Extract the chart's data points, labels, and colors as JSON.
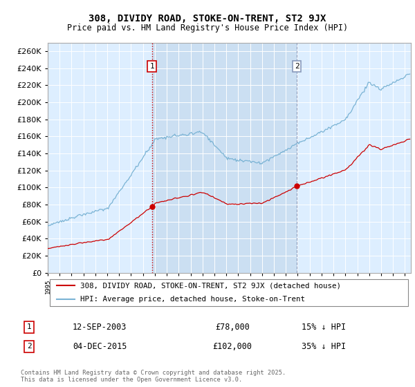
{
  "title": "308, DIVIDY ROAD, STOKE-ON-TRENT, ST2 9JX",
  "subtitle": "Price paid vs. HM Land Registry's House Price Index (HPI)",
  "ylim": [
    0,
    270000
  ],
  "yticks": [
    0,
    20000,
    40000,
    60000,
    80000,
    100000,
    120000,
    140000,
    160000,
    180000,
    200000,
    220000,
    240000,
    260000
  ],
  "hpi_color": "#7ab3d4",
  "price_color": "#cc0000",
  "sale1_vline_color": "#cc0000",
  "sale2_vline_color": "#8899bb",
  "bg_color": "#ddeeff",
  "sale1_date": 2003.75,
  "sale1_price": 78000,
  "sale2_date": 2015.92,
  "sale2_price": 102000,
  "legend_line1": "308, DIVIDY ROAD, STOKE-ON-TRENT, ST2 9JX (detached house)",
  "legend_line2": "HPI: Average price, detached house, Stoke-on-Trent",
  "table_row1": [
    "1",
    "12-SEP-2003",
    "£78,000",
    "15% ↓ HPI"
  ],
  "table_row2": [
    "2",
    "04-DEC-2015",
    "£102,000",
    "35% ↓ HPI"
  ],
  "footnote": "Contains HM Land Registry data © Crown copyright and database right 2025.\nThis data is licensed under the Open Government Licence v3.0.",
  "xmin": 1995.0,
  "xmax": 2025.5
}
